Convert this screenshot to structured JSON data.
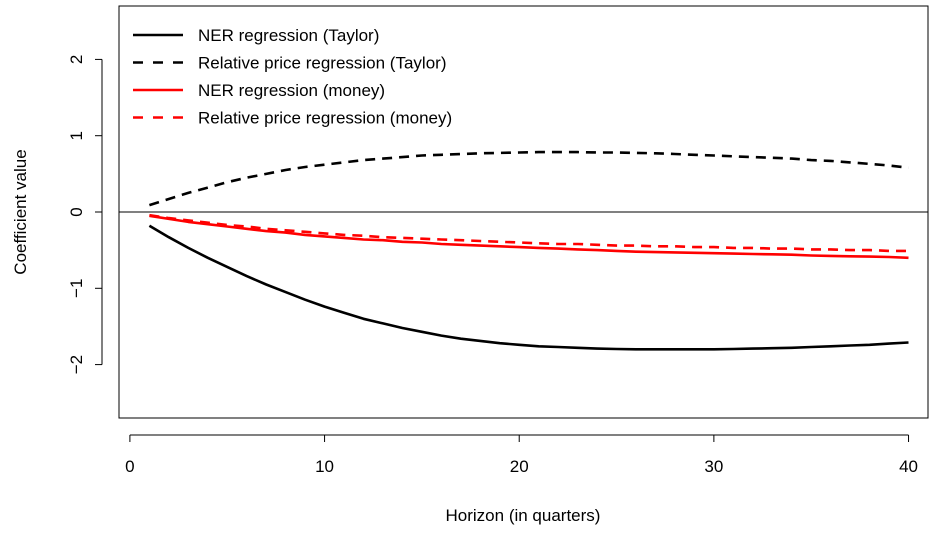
{
  "chart_data": {
    "type": "line",
    "title": "",
    "xlabel": "Horizon (in quarters)",
    "ylabel": "Coefficient value",
    "xlim": [
      -0.56,
      41.0
    ],
    "ylim": [
      -2.7,
      2.7
    ],
    "xticks": [
      0,
      10,
      20,
      30,
      40
    ],
    "yticks": [
      -2,
      -1,
      0,
      1,
      2
    ],
    "xtick_labels": [
      "0",
      "10",
      "20",
      "30",
      "40"
    ],
    "ytick_labels": [
      "−2",
      "−1",
      "0",
      "1",
      "2"
    ],
    "grid": false,
    "reference_line_y": 0,
    "legend_position": "top-left",
    "x": [
      1,
      2,
      3,
      4,
      5,
      6,
      7,
      8,
      9,
      10,
      11,
      12,
      13,
      14,
      15,
      16,
      17,
      18,
      19,
      20,
      21,
      22,
      23,
      24,
      25,
      26,
      27,
      28,
      29,
      30,
      31,
      32,
      33,
      34,
      35,
      36,
      37,
      38,
      39,
      40
    ],
    "series": [
      {
        "name": "NER regression (Taylor)",
        "color": "#000000",
        "dash": "solid",
        "values": [
          -0.18,
          -0.33,
          -0.47,
          -0.6,
          -0.72,
          -0.84,
          -0.95,
          -1.05,
          -1.15,
          -1.24,
          -1.32,
          -1.4,
          -1.46,
          -1.52,
          -1.57,
          -1.62,
          -1.66,
          -1.69,
          -1.72,
          -1.74,
          -1.76,
          -1.77,
          -1.78,
          -1.79,
          -1.795,
          -1.8,
          -1.8,
          -1.8,
          -1.8,
          -1.8,
          -1.795,
          -1.79,
          -1.785,
          -1.78,
          -1.77,
          -1.76,
          -1.75,
          -1.74,
          -1.725,
          -1.71
        ]
      },
      {
        "name": "Relative price regression (Taylor)",
        "color": "#000000",
        "dash": "dashed",
        "values": [
          0.09,
          0.17,
          0.25,
          0.32,
          0.39,
          0.45,
          0.5,
          0.55,
          0.59,
          0.62,
          0.65,
          0.68,
          0.7,
          0.72,
          0.74,
          0.75,
          0.76,
          0.77,
          0.775,
          0.78,
          0.785,
          0.785,
          0.785,
          0.78,
          0.78,
          0.775,
          0.77,
          0.76,
          0.75,
          0.74,
          0.73,
          0.72,
          0.71,
          0.7,
          0.68,
          0.67,
          0.65,
          0.63,
          0.61,
          0.58
        ]
      },
      {
        "name": "NER regression (money)",
        "color": "#ff0000",
        "dash": "solid",
        "values": [
          -0.05,
          -0.09,
          -0.13,
          -0.16,
          -0.19,
          -0.22,
          -0.25,
          -0.27,
          -0.3,
          -0.32,
          -0.34,
          -0.36,
          -0.37,
          -0.39,
          -0.4,
          -0.42,
          -0.43,
          -0.44,
          -0.45,
          -0.46,
          -0.47,
          -0.48,
          -0.49,
          -0.5,
          -0.51,
          -0.52,
          -0.525,
          -0.53,
          -0.535,
          -0.54,
          -0.545,
          -0.55,
          -0.555,
          -0.56,
          -0.57,
          -0.575,
          -0.58,
          -0.585,
          -0.59,
          -0.6
        ]
      },
      {
        "name": "Relative price regression (money)",
        "color": "#ff0000",
        "dash": "dashed",
        "values": [
          -0.04,
          -0.08,
          -0.11,
          -0.14,
          -0.17,
          -0.19,
          -0.22,
          -0.24,
          -0.26,
          -0.28,
          -0.3,
          -0.31,
          -0.33,
          -0.34,
          -0.35,
          -0.36,
          -0.37,
          -0.38,
          -0.39,
          -0.4,
          -0.41,
          -0.42,
          -0.42,
          -0.43,
          -0.44,
          -0.44,
          -0.45,
          -0.45,
          -0.46,
          -0.46,
          -0.47,
          -0.47,
          -0.48,
          -0.48,
          -0.49,
          -0.49,
          -0.5,
          -0.5,
          -0.51,
          -0.51
        ]
      }
    ]
  }
}
